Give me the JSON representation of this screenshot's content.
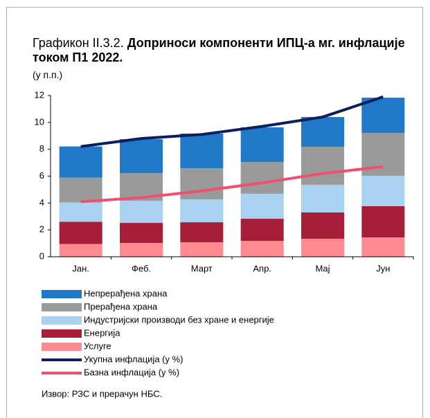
{
  "chart_data": {
    "type": "stacked_bar_line",
    "title_number": "Графикон II.3.2.",
    "title": "Доприноси компоненти ИПЦ-а мг. инфлације током П1 2022.",
    "y_label": "(у п.п.)",
    "source": "Извор: РЗС и прерачун НБС.",
    "categories": [
      "Јан.",
      "Феб.",
      "Март",
      "Апр.",
      "Мај",
      "Јун"
    ],
    "ylim": [
      0,
      12
    ],
    "yticks": [
      0,
      2,
      4,
      6,
      8,
      10,
      12
    ],
    "series": [
      {
        "name": "Услуге",
        "color": "#ff8a8f",
        "kind": "bar",
        "values": [
          0.95,
          1.03,
          1.08,
          1.18,
          1.34,
          1.44
        ]
      },
      {
        "name": "Енергија",
        "color": "#a61e38",
        "kind": "bar",
        "values": [
          1.65,
          1.49,
          1.49,
          1.65,
          1.96,
          2.32
        ]
      },
      {
        "name": "Индустријски производи без хране и енергије",
        "color": "#a8d2f0",
        "kind": "bar",
        "values": [
          1.44,
          1.65,
          1.7,
          1.86,
          2.06,
          2.26
        ]
      },
      {
        "name": "Прерађена храна",
        "color": "#9a9a9a",
        "kind": "bar",
        "values": [
          1.85,
          2.06,
          2.32,
          2.36,
          2.83,
          3.2
        ]
      },
      {
        "name": "Непрерађена храна",
        "color": "#1f78c8",
        "kind": "bar",
        "values": [
          2.32,
          2.52,
          2.58,
          2.58,
          2.21,
          2.62
        ]
      },
      {
        "name": "Укупна инфлација (у %)",
        "color": "#0b1f5c",
        "kind": "line",
        "values": [
          8.2,
          8.8,
          9.1,
          9.7,
          10.4,
          11.9
        ]
      },
      {
        "name": "Базна инфлација (у %)",
        "color": "#f0506e",
        "kind": "line",
        "values": [
          4.1,
          4.4,
          4.9,
          5.5,
          6.2,
          6.7
        ]
      }
    ],
    "legend_order": [
      4,
      3,
      2,
      1,
      0,
      5,
      6
    ]
  }
}
